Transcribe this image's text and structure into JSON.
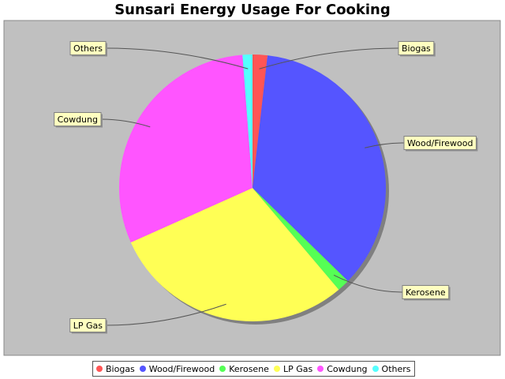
{
  "chart_data": {
    "type": "pie",
    "title": "Sunsari Energy Usage For Cooking",
    "categories": [
      "Biogas",
      "Wood/Firewood",
      "Kerosene",
      "LP Gas",
      "Cowdung",
      "Others"
    ],
    "values": [
      1.8,
      35.5,
      1.5,
      29.5,
      30.5,
      1.2
    ],
    "colors": [
      "#ff5555",
      "#5555ff",
      "#55ff55",
      "#ffff55",
      "#ff55ff",
      "#55ffff"
    ],
    "legend_position": "bottom",
    "background": "#c0c0c0"
  }
}
